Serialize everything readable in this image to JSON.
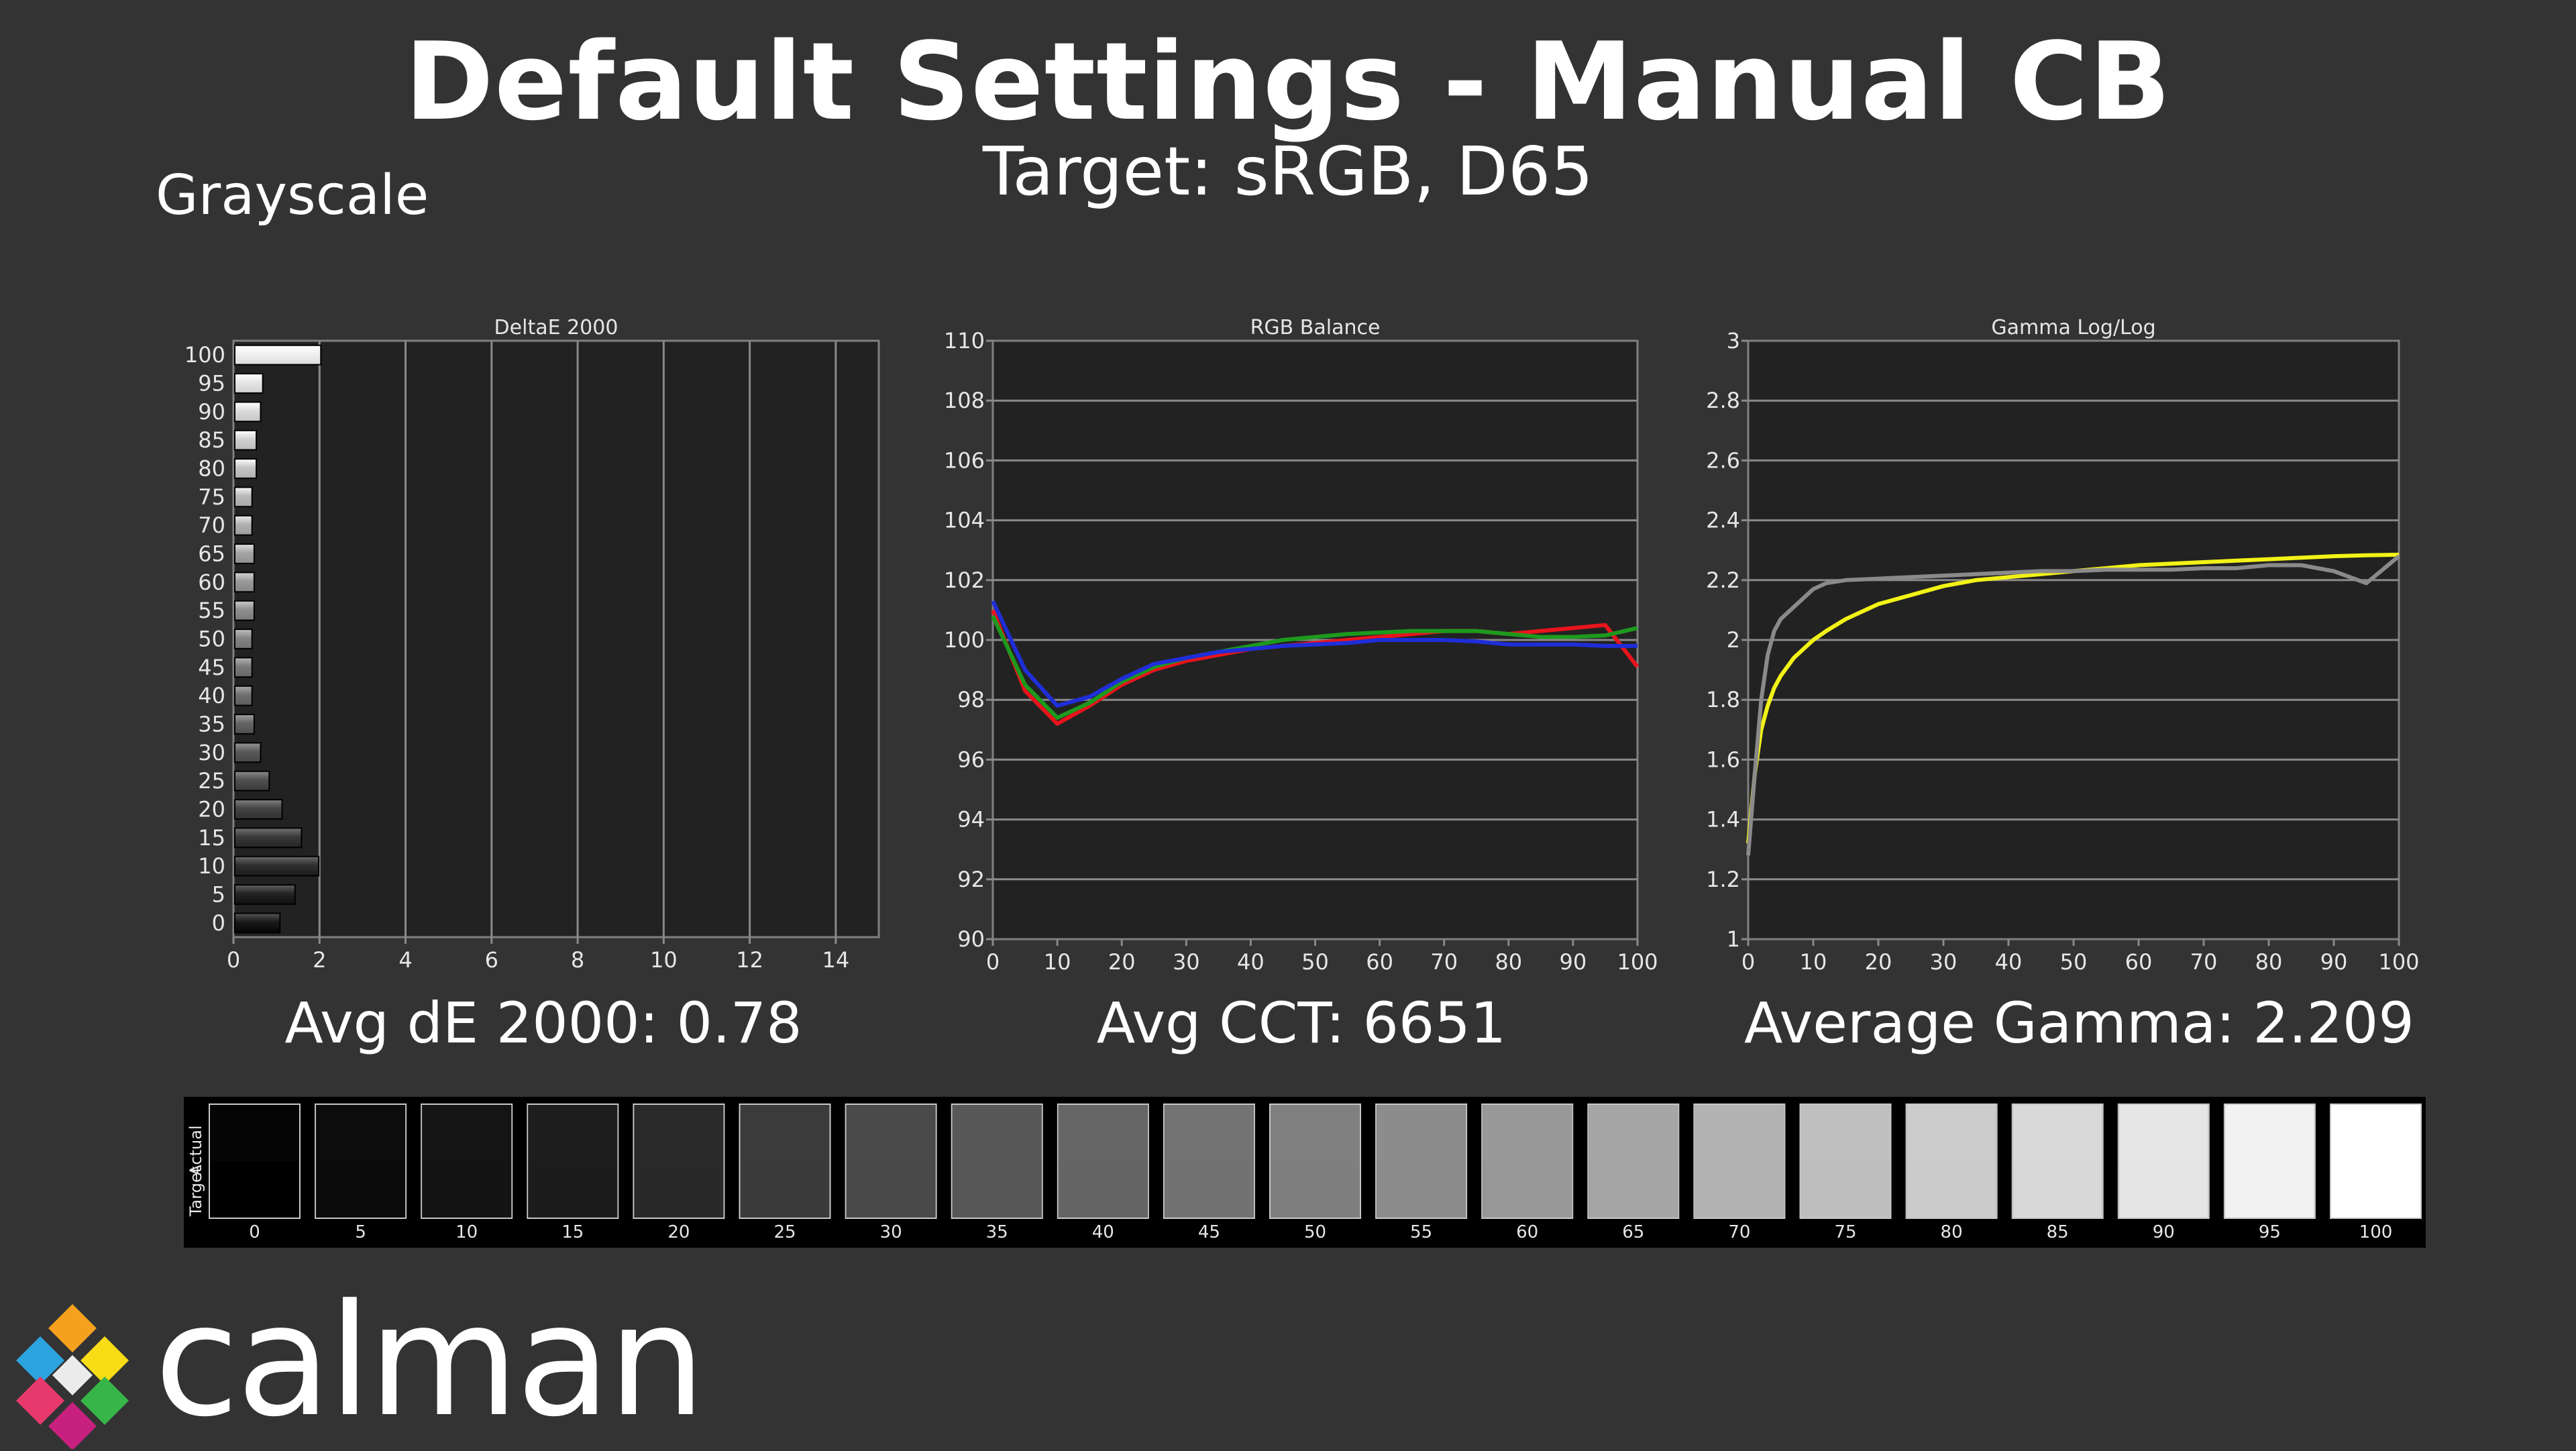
{
  "header": {
    "title": "Default Settings - Manual CB",
    "subtitle": "Target: sRGB, D65",
    "section": "Grayscale"
  },
  "summary": {
    "avg_de": "Avg dE 2000: 0.78",
    "avg_cct": "Avg CCT: 6651",
    "avg_gamma": "Average Gamma: 2.209"
  },
  "logo": {
    "text": "calman"
  },
  "swatches": {
    "actual_label": "Actual",
    "target_label": "Target",
    "levels": [
      "0",
      "5",
      "10",
      "15",
      "20",
      "25",
      "30",
      "35",
      "40",
      "45",
      "50",
      "55",
      "60",
      "65",
      "70",
      "75",
      "80",
      "85",
      "90",
      "95",
      "100"
    ],
    "actual_colors": [
      "#050505",
      "#0c0c0c",
      "#141414",
      "#1d1d1d",
      "#2a2a2a",
      "#3b3b3b",
      "#4a4a4a",
      "#585858",
      "#666666",
      "#737373",
      "#808080",
      "#8c8c8c",
      "#999999",
      "#a6a6a6",
      "#b3b3b3",
      "#bfbfbf",
      "#cccccc",
      "#d9d9d9",
      "#e6e6e6",
      "#f2f2f2",
      "#ffffff"
    ],
    "target_colors": [
      "#000000",
      "#0b0b0b",
      "#131313",
      "#1c1c1c",
      "#292929",
      "#3a3a3a",
      "#494949",
      "#575757",
      "#656565",
      "#727272",
      "#7f7f7f",
      "#8b8b8b",
      "#989898",
      "#a5a5a5",
      "#b2b2b2",
      "#bebebe",
      "#cbcbcb",
      "#d8d8d8",
      "#e5e5e5",
      "#f1f1f1",
      "#ffffff"
    ]
  },
  "chart_data": [
    {
      "type": "bar",
      "title": "DeltaE 2000",
      "orientation": "horizontal",
      "categories": [
        "0",
        "5",
        "10",
        "15",
        "20",
        "25",
        "30",
        "35",
        "40",
        "45",
        "50",
        "55",
        "60",
        "65",
        "70",
        "75",
        "80",
        "85",
        "90",
        "95",
        "100"
      ],
      "values": [
        1.05,
        1.4,
        1.95,
        1.55,
        1.1,
        0.8,
        0.6,
        0.45,
        0.4,
        0.4,
        0.4,
        0.45,
        0.45,
        0.45,
        0.4,
        0.4,
        0.5,
        0.5,
        0.6,
        0.65,
        2.0
      ],
      "xlim": [
        0,
        15
      ],
      "xticks": [
        0,
        2,
        4,
        6,
        8,
        10,
        12,
        14
      ],
      "grid": true
    },
    {
      "type": "line",
      "title": "RGB Balance",
      "x": [
        0,
        5,
        10,
        15,
        20,
        25,
        30,
        35,
        40,
        45,
        50,
        55,
        60,
        65,
        70,
        75,
        80,
        85,
        90,
        95,
        100
      ],
      "series": [
        {
          "color": "#e8141c",
          "values": [
            101.0,
            98.3,
            97.2,
            97.8,
            98.5,
            99.0,
            99.3,
            99.5,
            99.7,
            99.8,
            99.9,
            100.0,
            100.1,
            100.2,
            100.3,
            100.3,
            100.2,
            100.3,
            100.4,
            100.5,
            99.1
          ]
        },
        {
          "color": "#1d9a1d",
          "values": [
            100.8,
            98.5,
            97.4,
            97.9,
            98.6,
            99.1,
            99.4,
            99.6,
            99.8,
            100.0,
            100.1,
            100.2,
            100.25,
            100.3,
            100.3,
            100.3,
            100.2,
            100.1,
            100.1,
            100.15,
            100.4
          ]
        },
        {
          "color": "#1f2ed8",
          "values": [
            101.3,
            99.0,
            97.8,
            98.1,
            98.7,
            99.2,
            99.4,
            99.6,
            99.7,
            99.8,
            99.85,
            99.9,
            100.0,
            100.0,
            100.0,
            99.95,
            99.85,
            99.85,
            99.85,
            99.8,
            99.8
          ]
        }
      ],
      "xlim": [
        0,
        100
      ],
      "ylim": [
        90,
        110
      ],
      "xticks": [
        0,
        10,
        20,
        30,
        40,
        50,
        60,
        70,
        80,
        90,
        100
      ],
      "yticks": [
        90,
        92,
        94,
        96,
        98,
        100,
        102,
        104,
        106,
        108,
        110
      ],
      "grid": true
    },
    {
      "type": "line",
      "title": "Gamma Log/Log",
      "x": [
        0,
        1,
        2,
        3,
        4,
        5,
        7,
        10,
        12,
        15,
        20,
        25,
        30,
        35,
        40,
        45,
        50,
        55,
        60,
        65,
        70,
        75,
        80,
        85,
        90,
        95,
        100
      ],
      "series": [
        {
          "color": "#f2f217",
          "values": [
            1.32,
            1.55,
            1.7,
            1.78,
            1.84,
            1.88,
            1.94,
            2.0,
            2.03,
            2.07,
            2.12,
            2.15,
            2.18,
            2.2,
            2.21,
            2.22,
            2.23,
            2.24,
            2.25,
            2.255,
            2.26,
            2.265,
            2.27,
            2.275,
            2.28,
            2.283,
            2.285
          ]
        },
        {
          "color": "#8a8a8a",
          "values": [
            1.28,
            1.55,
            1.8,
            1.95,
            2.03,
            2.07,
            2.11,
            2.17,
            2.19,
            2.2,
            2.205,
            2.21,
            2.215,
            2.22,
            2.225,
            2.23,
            2.23,
            2.235,
            2.235,
            2.235,
            2.24,
            2.24,
            2.25,
            2.25,
            2.23,
            2.19,
            2.28
          ]
        }
      ],
      "xlim": [
        0,
        100
      ],
      "ylim": [
        1,
        3
      ],
      "xticks": [
        0,
        10,
        20,
        30,
        40,
        50,
        60,
        70,
        80,
        90,
        100
      ],
      "yticks": [
        "1",
        "1.2",
        "1.4",
        "1.6",
        "1.8",
        "2",
        "2.2",
        "2.4",
        "2.6",
        "2.8",
        "3"
      ],
      "grid": true
    }
  ]
}
